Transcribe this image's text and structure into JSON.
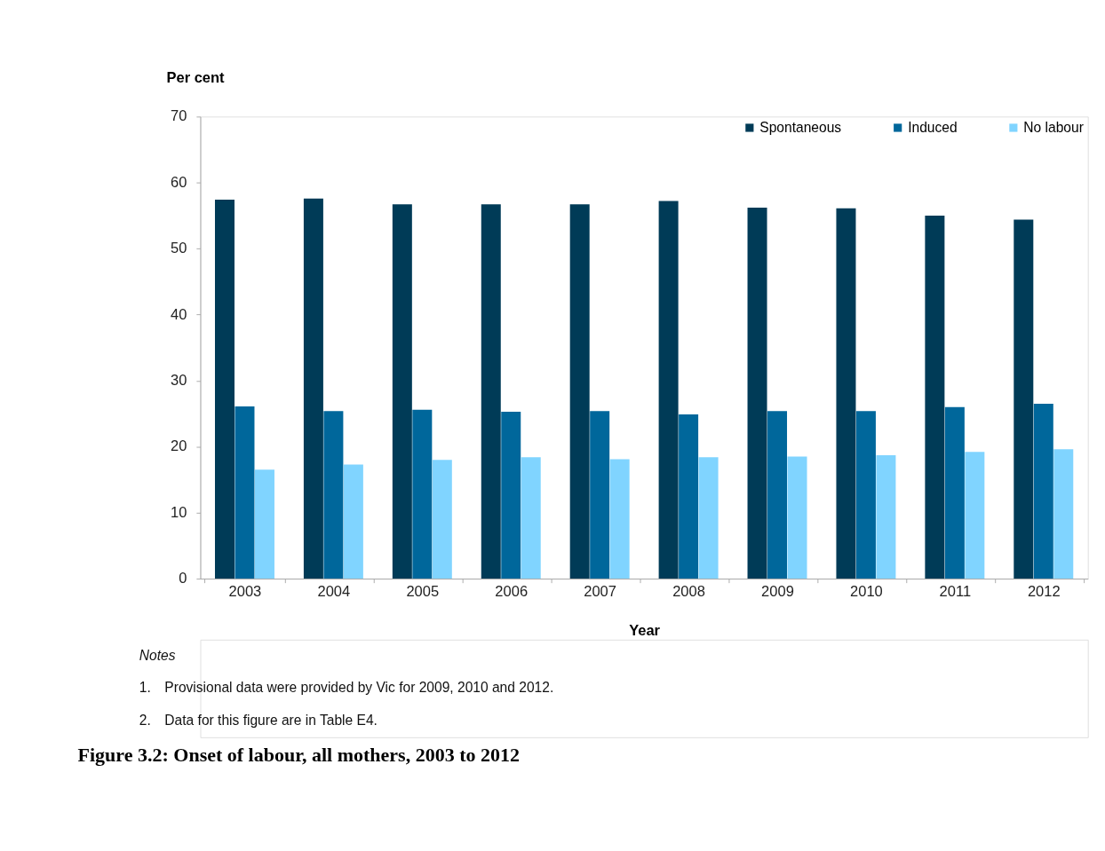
{
  "chart_data": {
    "type": "bar",
    "title": "Figure 3.2: Onset of labour, all mothers, 2003 to 2012",
    "xlabel": "Year",
    "ylabel": "Per cent",
    "categories": [
      "2003",
      "2004",
      "2005",
      "2006",
      "2007",
      "2008",
      "2009",
      "2010",
      "2011",
      "2012"
    ],
    "series": [
      {
        "name": "Spontaneous",
        "color": "#003b57",
        "values": [
          57.4,
          57.6,
          56.7,
          56.7,
          56.7,
          57.2,
          56.2,
          56.1,
          55.0,
          54.4
        ]
      },
      {
        "name": "Induced",
        "color": "#00679b",
        "values": [
          26.1,
          25.4,
          25.6,
          25.3,
          25.4,
          24.9,
          25.4,
          25.4,
          26.0,
          26.5
        ]
      },
      {
        "name": "No labour",
        "color": "#80d4ff",
        "values": [
          16.5,
          17.3,
          18.0,
          18.4,
          18.1,
          18.4,
          18.5,
          18.7,
          19.2,
          19.6
        ]
      }
    ],
    "ylim": [
      0,
      70
    ],
    "yticks": [
      0,
      10,
      20,
      30,
      40,
      50,
      60,
      70
    ],
    "grid": false,
    "legend": "top right",
    "annotations": [
      "Notes",
      "1. Provisional data were provided by Vic for 2009, 2010 and 2012.",
      "2. Data for this figure are in Table E4."
    ]
  }
}
